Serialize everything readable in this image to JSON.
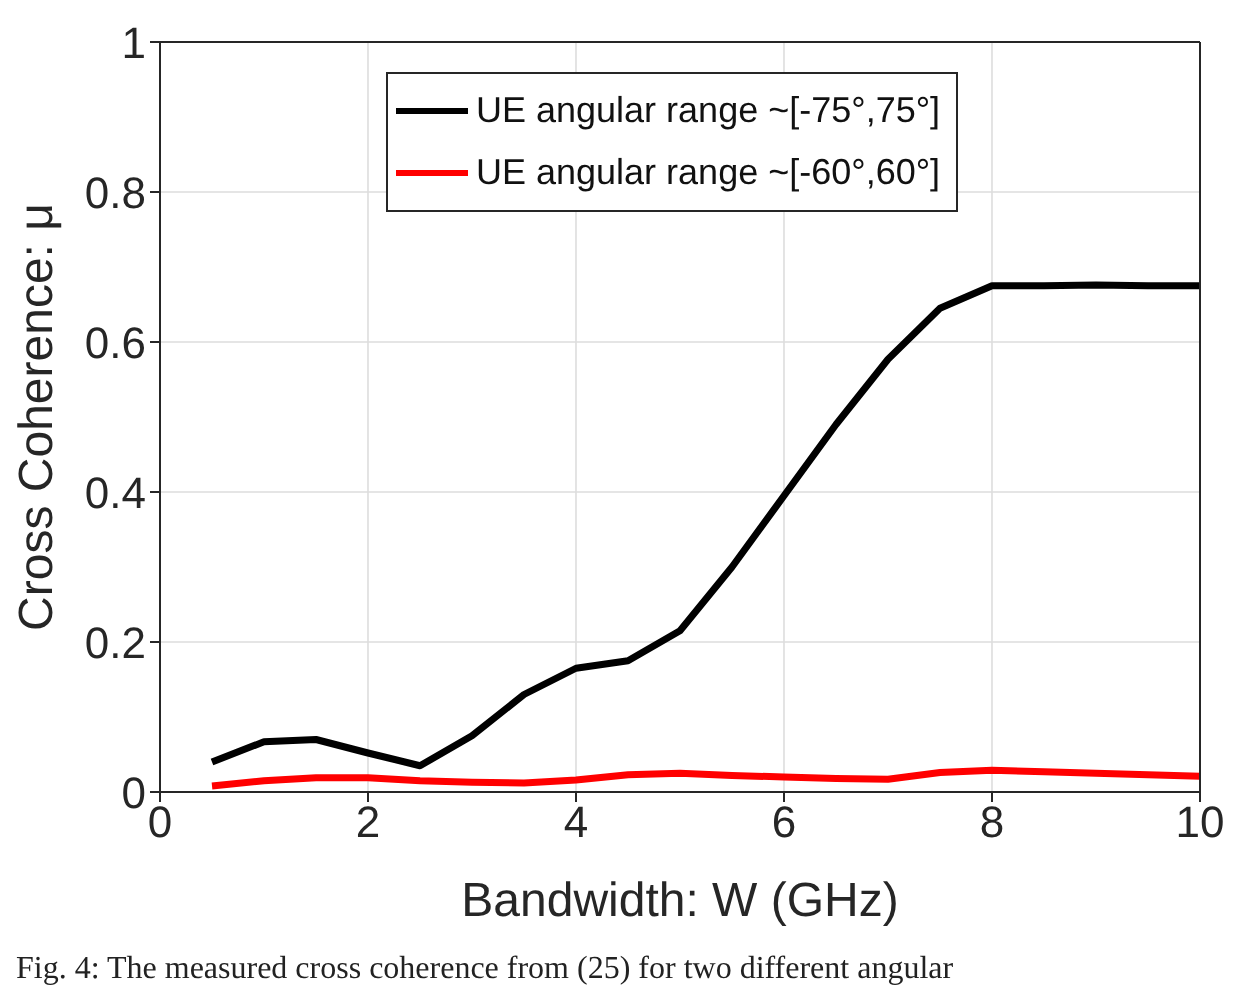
{
  "chart_data": {
    "type": "line",
    "xlabel": "Bandwidth: W (GHz)",
    "ylabel": "Cross Coherence: μ",
    "x": [
      0.5,
      1,
      1.5,
      2,
      2.5,
      3,
      3.5,
      4,
      4.5,
      5,
      5.5,
      6,
      6.5,
      7,
      7.5,
      8,
      8.5,
      9,
      9.5,
      10
    ],
    "series": [
      {
        "name": "UE angular range ~[-75°,75°]",
        "color": "#000000",
        "values": [
          0.04,
          0.067,
          0.07,
          0.052,
          0.035,
          0.075,
          0.13,
          0.165,
          0.175,
          0.215,
          0.3,
          0.395,
          0.49,
          0.577,
          0.645,
          0.675,
          0.675,
          0.676,
          0.675,
          0.675
        ]
      },
      {
        "name": "UE angular range ~[-60°,60°]",
        "color": "#ff0000",
        "values": [
          0.008,
          0.015,
          0.019,
          0.019,
          0.015,
          0.013,
          0.012,
          0.016,
          0.023,
          0.025,
          0.022,
          0.02,
          0.018,
          0.017,
          0.026,
          0.029,
          0.027,
          0.025,
          0.023,
          0.021
        ]
      }
    ],
    "xlim": [
      0,
      10
    ],
    "xticks": [
      0,
      2,
      4,
      6,
      8,
      10
    ],
    "ylim": [
      0,
      1
    ],
    "yticks": [
      0,
      0.2,
      0.4,
      0.6,
      0.8,
      1
    ],
    "grid": true,
    "legend": "top",
    "marker": "none",
    "line_style": "solid",
    "annotations": [
      "Fig. 4: The measured cross coherence from (25) for two different angular"
    ]
  }
}
